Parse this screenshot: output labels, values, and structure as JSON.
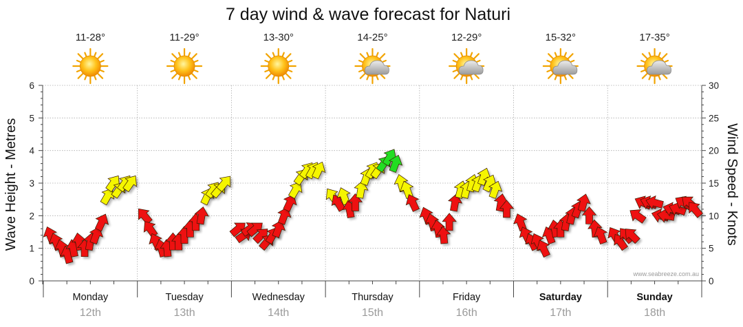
{
  "chart_data": {
    "type": "wind-arrows",
    "title": "7 day wind & wave forecast for Naturi",
    "ylabel_left": "Wave Height - Metres",
    "ylabel_right": "Wind Speed - Knots",
    "left_axis": {
      "min": 0,
      "max": 6,
      "ticks": [
        "0",
        "1",
        "2",
        "3",
        "4",
        "5",
        "6"
      ]
    },
    "right_axis": {
      "min": 0,
      "max": 30,
      "ticks": [
        "0",
        "5",
        "10",
        "15",
        "20",
        "25",
        "30"
      ]
    },
    "days": [
      {
        "day": "Monday",
        "date": "12th",
        "temp": "11-28°",
        "weather": "sunny",
        "bold": false
      },
      {
        "day": "Tuesday",
        "date": "13th",
        "temp": "11-29°",
        "weather": "sunny",
        "bold": false
      },
      {
        "day": "Wednesday",
        "date": "14th",
        "temp": "13-30°",
        "weather": "sunny",
        "bold": false
      },
      {
        "day": "Thursday",
        "date": "15th",
        "temp": "14-25°",
        "weather": "partly-cloudy",
        "bold": false
      },
      {
        "day": "Friday",
        "date": "16th",
        "temp": "12-29°",
        "weather": "partly-cloudy",
        "bold": false
      },
      {
        "day": "Saturday",
        "date": "17th",
        "temp": "15-32°",
        "weather": "partly-cloudy",
        "bold": true
      },
      {
        "day": "Sunday",
        "date": "18th",
        "temp": "17-35°",
        "weather": "partly-cloudy",
        "bold": true
      }
    ],
    "wind_knots": [
      [
        7,
        6,
        5,
        4,
        5,
        6,
        5,
        6,
        7,
        9,
        13,
        15,
        14,
        15,
        15
      ],
      [
        10,
        8,
        6,
        5,
        5,
        6,
        6,
        7,
        8,
        9,
        10,
        13,
        14,
        14,
        15
      ],
      [
        8,
        7,
        8,
        8,
        7,
        6,
        7,
        8,
        10,
        12,
        14,
        16,
        17,
        17,
        17
      ],
      [
        13,
        12,
        13,
        11,
        12,
        14,
        16,
        17,
        17,
        18,
        19,
        18,
        15,
        14,
        12
      ],
      [
        10,
        9,
        8,
        7,
        9,
        12,
        14,
        14,
        15,
        15,
        16,
        15,
        14,
        12,
        11
      ],
      [
        9,
        7,
        6,
        6,
        5,
        7,
        8,
        8,
        9,
        10,
        11,
        12,
        10,
        8,
        7
      ],
      [
        7,
        6,
        7,
        7,
        10,
        12,
        12,
        12,
        10,
        10,
        11,
        11,
        12,
        12,
        11
      ]
    ],
    "direction_degrees": [
      [
        -20,
        -20,
        -15,
        -15,
        -10,
        -10,
        0,
        10,
        20,
        25,
        30,
        35,
        35,
        35,
        35
      ],
      [
        -40,
        -35,
        -25,
        -15,
        -5,
        0,
        0,
        0,
        0,
        0,
        10,
        25,
        35,
        40,
        40
      ],
      [
        50,
        55,
        55,
        50,
        45,
        40,
        30,
        20,
        20,
        25,
        30,
        35,
        35,
        30,
        25
      ],
      [
        -35,
        -30,
        -20,
        -10,
        0,
        10,
        20,
        30,
        35,
        35,
        30,
        20,
        -15,
        -20,
        -25
      ],
      [
        -20,
        -15,
        -10,
        -5,
        0,
        10,
        15,
        15,
        15,
        20,
        20,
        25,
        20,
        10,
        0
      ],
      [
        -20,
        -25,
        -25,
        -25,
        -25,
        -20,
        -10,
        0,
        10,
        15,
        20,
        15,
        0,
        -5,
        -20
      ],
      [
        -30,
        -35,
        -40,
        -45,
        -55,
        -65,
        -70,
        -75,
        -75,
        -80,
        -75,
        -70,
        -60,
        -50,
        -40
      ]
    ],
    "color_thresholds": [
      {
        "max_knots": 12,
        "color": "#ee1111"
      },
      {
        "max_knots": 17.5,
        "color": "#f5f500"
      },
      {
        "max_knots": 30,
        "color": "#22dd22"
      }
    ],
    "credit": "www.seabreeze.com.au"
  }
}
